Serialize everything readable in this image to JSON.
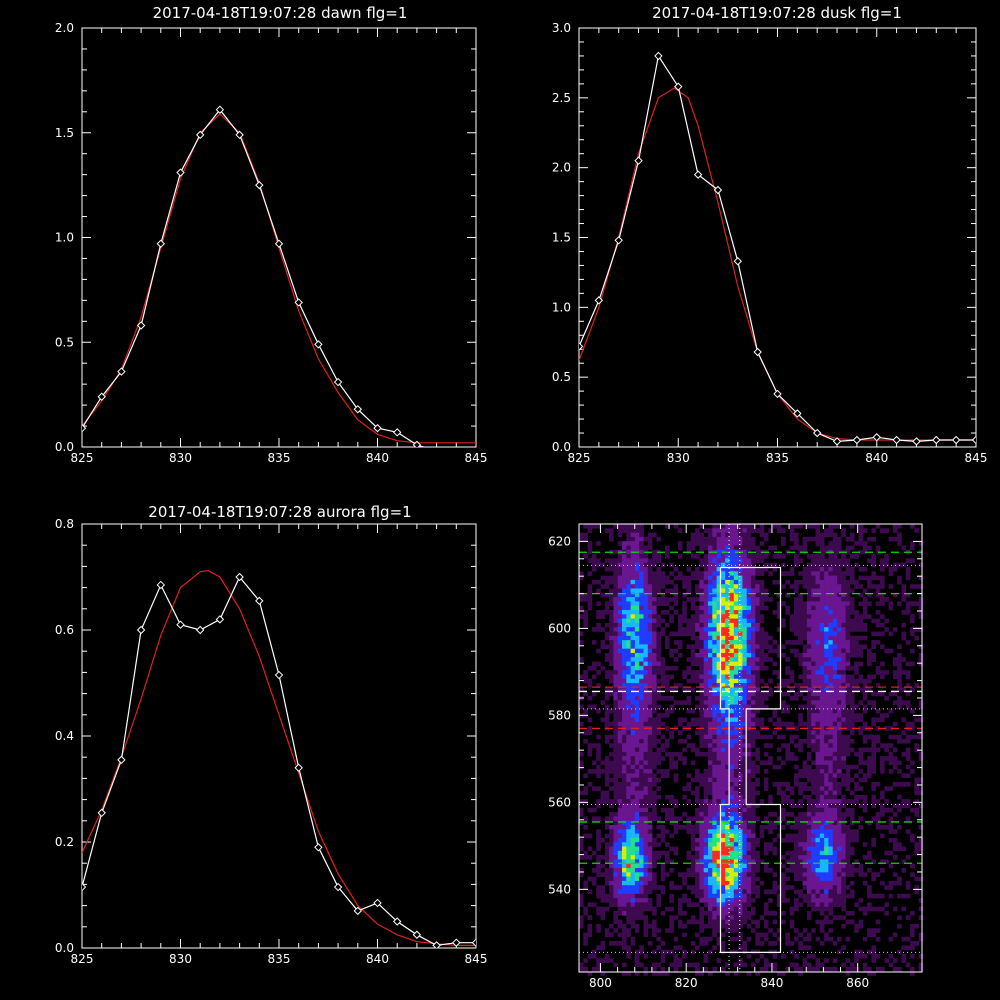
{
  "chart_data": [
    {
      "type": "line",
      "title": "2017-04-18T19:07:28 dawn flg=1",
      "xlim": [
        825,
        845
      ],
      "ylim": [
        0,
        2.0
      ],
      "xticks": [
        "825",
        "830",
        "835",
        "840",
        "845"
      ],
      "yticks": [
        "0.0",
        "0.5",
        "1.0",
        "1.5",
        "2.0"
      ],
      "series": [
        {
          "color": "#ffffff",
          "markers": true,
          "x": [
            825,
            826,
            827,
            828,
            829,
            830,
            831,
            832,
            833,
            834,
            835,
            836,
            837,
            838,
            839,
            840,
            841,
            842,
            843,
            844,
            845
          ],
          "y": [
            0.09,
            0.24,
            0.36,
            0.58,
            0.97,
            1.31,
            1.49,
            1.61,
            1.49,
            1.25,
            0.97,
            0.69,
            0.49,
            0.31,
            0.18,
            0.09,
            0.07,
            0.01,
            -0.02,
            -0.02,
            -0.02
          ]
        },
        {
          "color": "#e0201a",
          "markers": false,
          "x": [
            825,
            826,
            827,
            828,
            829,
            830,
            831,
            832,
            833,
            834,
            835,
            836,
            837,
            838,
            839,
            840,
            841,
            842,
            843,
            844,
            845
          ],
          "y": [
            0.1,
            0.22,
            0.37,
            0.62,
            0.95,
            1.28,
            1.5,
            1.59,
            1.5,
            1.26,
            0.95,
            0.65,
            0.42,
            0.26,
            0.13,
            0.06,
            0.03,
            0.02,
            0.02,
            0.02,
            0.02
          ]
        }
      ]
    },
    {
      "type": "line",
      "title": "2017-04-18T19:07:28 dusk flg=1",
      "xlim": [
        825,
        845
      ],
      "ylim": [
        0,
        3.0
      ],
      "xticks": [
        "825",
        "830",
        "835",
        "840",
        "845"
      ],
      "yticks": [
        "0.0",
        "0.5",
        "1.0",
        "1.5",
        "2.0",
        "2.5",
        "3.0"
      ],
      "series": [
        {
          "color": "#ffffff",
          "markers": true,
          "x": [
            825,
            826,
            827,
            828,
            829,
            830,
            831,
            832,
            833,
            834,
            835,
            836,
            837,
            838,
            839,
            840,
            841,
            842,
            843,
            844,
            845
          ],
          "y": [
            0.72,
            1.05,
            1.48,
            2.05,
            2.8,
            2.58,
            1.95,
            1.84,
            1.33,
            0.68,
            0.38,
            0.24,
            0.1,
            0.04,
            0.05,
            0.07,
            0.05,
            0.04,
            0.05,
            0.05,
            0.05
          ]
        },
        {
          "color": "#e0201a",
          "markers": false,
          "x": [
            825,
            826,
            827,
            828,
            829,
            829.8,
            830.5,
            831,
            832,
            833,
            834,
            835,
            836,
            837,
            838,
            839,
            840,
            841,
            842,
            843,
            844,
            845
          ],
          "y": [
            0.62,
            1.0,
            1.5,
            2.1,
            2.5,
            2.57,
            2.5,
            2.3,
            1.75,
            1.15,
            0.68,
            0.38,
            0.2,
            0.1,
            0.06,
            0.05,
            0.05,
            0.05,
            0.05,
            0.05,
            0.05,
            0.05
          ]
        }
      ]
    },
    {
      "type": "line",
      "title": "2017-04-18T19:07:28 aurora flg=1",
      "xlim": [
        825,
        845
      ],
      "ylim": [
        0,
        0.8
      ],
      "xticks": [
        "825",
        "830",
        "835",
        "840",
        "845"
      ],
      "yticks": [
        "0.0",
        "0.2",
        "0.4",
        "0.6",
        "0.8"
      ],
      "series": [
        {
          "color": "#ffffff",
          "markers": true,
          "x": [
            825,
            826,
            827,
            828,
            829,
            830,
            831,
            832,
            833,
            834,
            835,
            836,
            837,
            838,
            839,
            840,
            841,
            842,
            843,
            844,
            845
          ],
          "y": [
            0.115,
            0.255,
            0.355,
            0.6,
            0.685,
            0.61,
            0.6,
            0.62,
            0.7,
            0.655,
            0.515,
            0.34,
            0.19,
            0.115,
            0.07,
            0.085,
            0.05,
            0.025,
            0.005,
            0.01,
            0.01
          ]
        },
        {
          "color": "#e0201a",
          "markers": false,
          "x": [
            825,
            826,
            827,
            828,
            829,
            830,
            831,
            831.4,
            832,
            833,
            834,
            835,
            836,
            837,
            838,
            839,
            840,
            841,
            842,
            843,
            844,
            845
          ],
          "y": [
            0.18,
            0.26,
            0.36,
            0.47,
            0.59,
            0.68,
            0.71,
            0.712,
            0.7,
            0.64,
            0.55,
            0.44,
            0.33,
            0.22,
            0.14,
            0.08,
            0.045,
            0.025,
            0.012,
            0.008,
            0.005,
            0.005
          ]
        }
      ]
    },
    {
      "type": "heatmap",
      "title": "",
      "xlim": [
        795,
        875
      ],
      "ylim": [
        521,
        624
      ],
      "xticks": [
        "800",
        "820",
        "840",
        "860"
      ],
      "yticks": [
        "520",
        "540",
        "560",
        "580",
        "600",
        "620"
      ],
      "colors": [
        "#3d0a4f",
        "#6a1690",
        "#1f3cff",
        "#19b7ff",
        "#24e08a",
        "#d8f000",
        "#ff2a1a"
      ],
      "blobs": [
        {
          "x": 808,
          "y": 599,
          "sx": 2.6,
          "sy": 11,
          "amp": 0.6
        },
        {
          "x": 830,
          "y": 599,
          "sx": 3.2,
          "sy": 12,
          "amp": 0.98
        },
        {
          "x": 853,
          "y": 597,
          "sx": 3.0,
          "sy": 11,
          "amp": 0.32
        },
        {
          "x": 807,
          "y": 547,
          "sx": 2.4,
          "sy": 6,
          "amp": 0.72
        },
        {
          "x": 829,
          "y": 547,
          "sx": 3.0,
          "sy": 6.5,
          "amp": 1.0
        },
        {
          "x": 852,
          "y": 548,
          "sx": 2.8,
          "sy": 6,
          "amp": 0.48
        },
        {
          "x": 808,
          "y": 572,
          "sx": 3.0,
          "sy": 12,
          "amp": 0.14
        },
        {
          "x": 830,
          "y": 572,
          "sx": 3.0,
          "sy": 13,
          "amp": 0.16
        },
        {
          "x": 853,
          "y": 572,
          "sx": 3.0,
          "sy": 12,
          "amp": 0.1
        }
      ],
      "hlines": [
        {
          "y": 617.5,
          "color": "#18d218",
          "style": "dashed"
        },
        {
          "y": 614.5,
          "color": "#d0d0d0",
          "style": "dotted"
        },
        {
          "y": 608,
          "color": "#18d218",
          "style": "dashed"
        },
        {
          "y": 586.5,
          "color": "#e0201a",
          "style": "dashed"
        },
        {
          "y": 585.5,
          "color": "#ffffff",
          "style": "dashed"
        },
        {
          "y": 581.5,
          "color": "#d0d0d0",
          "style": "dotted"
        },
        {
          "y": 577,
          "color": "#e0201a",
          "style": "dashed"
        },
        {
          "y": 559.5,
          "color": "#d0d0d0",
          "style": "dotted"
        },
        {
          "y": 555.5,
          "color": "#18d218",
          "style": "dashed"
        },
        {
          "y": 546,
          "color": "#18d218",
          "style": "dashed"
        },
        {
          "y": 525.5,
          "color": "#d0d0d0",
          "style": "dotted"
        }
      ],
      "vlines": [
        {
          "x": 830,
          "color": "#ffffff",
          "style": "dotted"
        },
        {
          "x": 832.5,
          "color": "#ffffff",
          "style": "dotted"
        }
      ],
      "outline": [
        [
          828,
          614
        ],
        [
          842,
          614
        ],
        [
          842,
          581.5
        ],
        [
          834,
          581.5
        ],
        [
          834,
          559.5
        ],
        [
          842,
          559.5
        ],
        [
          842,
          525.5
        ],
        [
          828,
          525.5
        ],
        [
          828,
          559.5
        ],
        [
          830,
          559.5
        ],
        [
          830,
          581.5
        ],
        [
          828,
          581.5
        ],
        [
          828,
          614
        ]
      ]
    }
  ]
}
